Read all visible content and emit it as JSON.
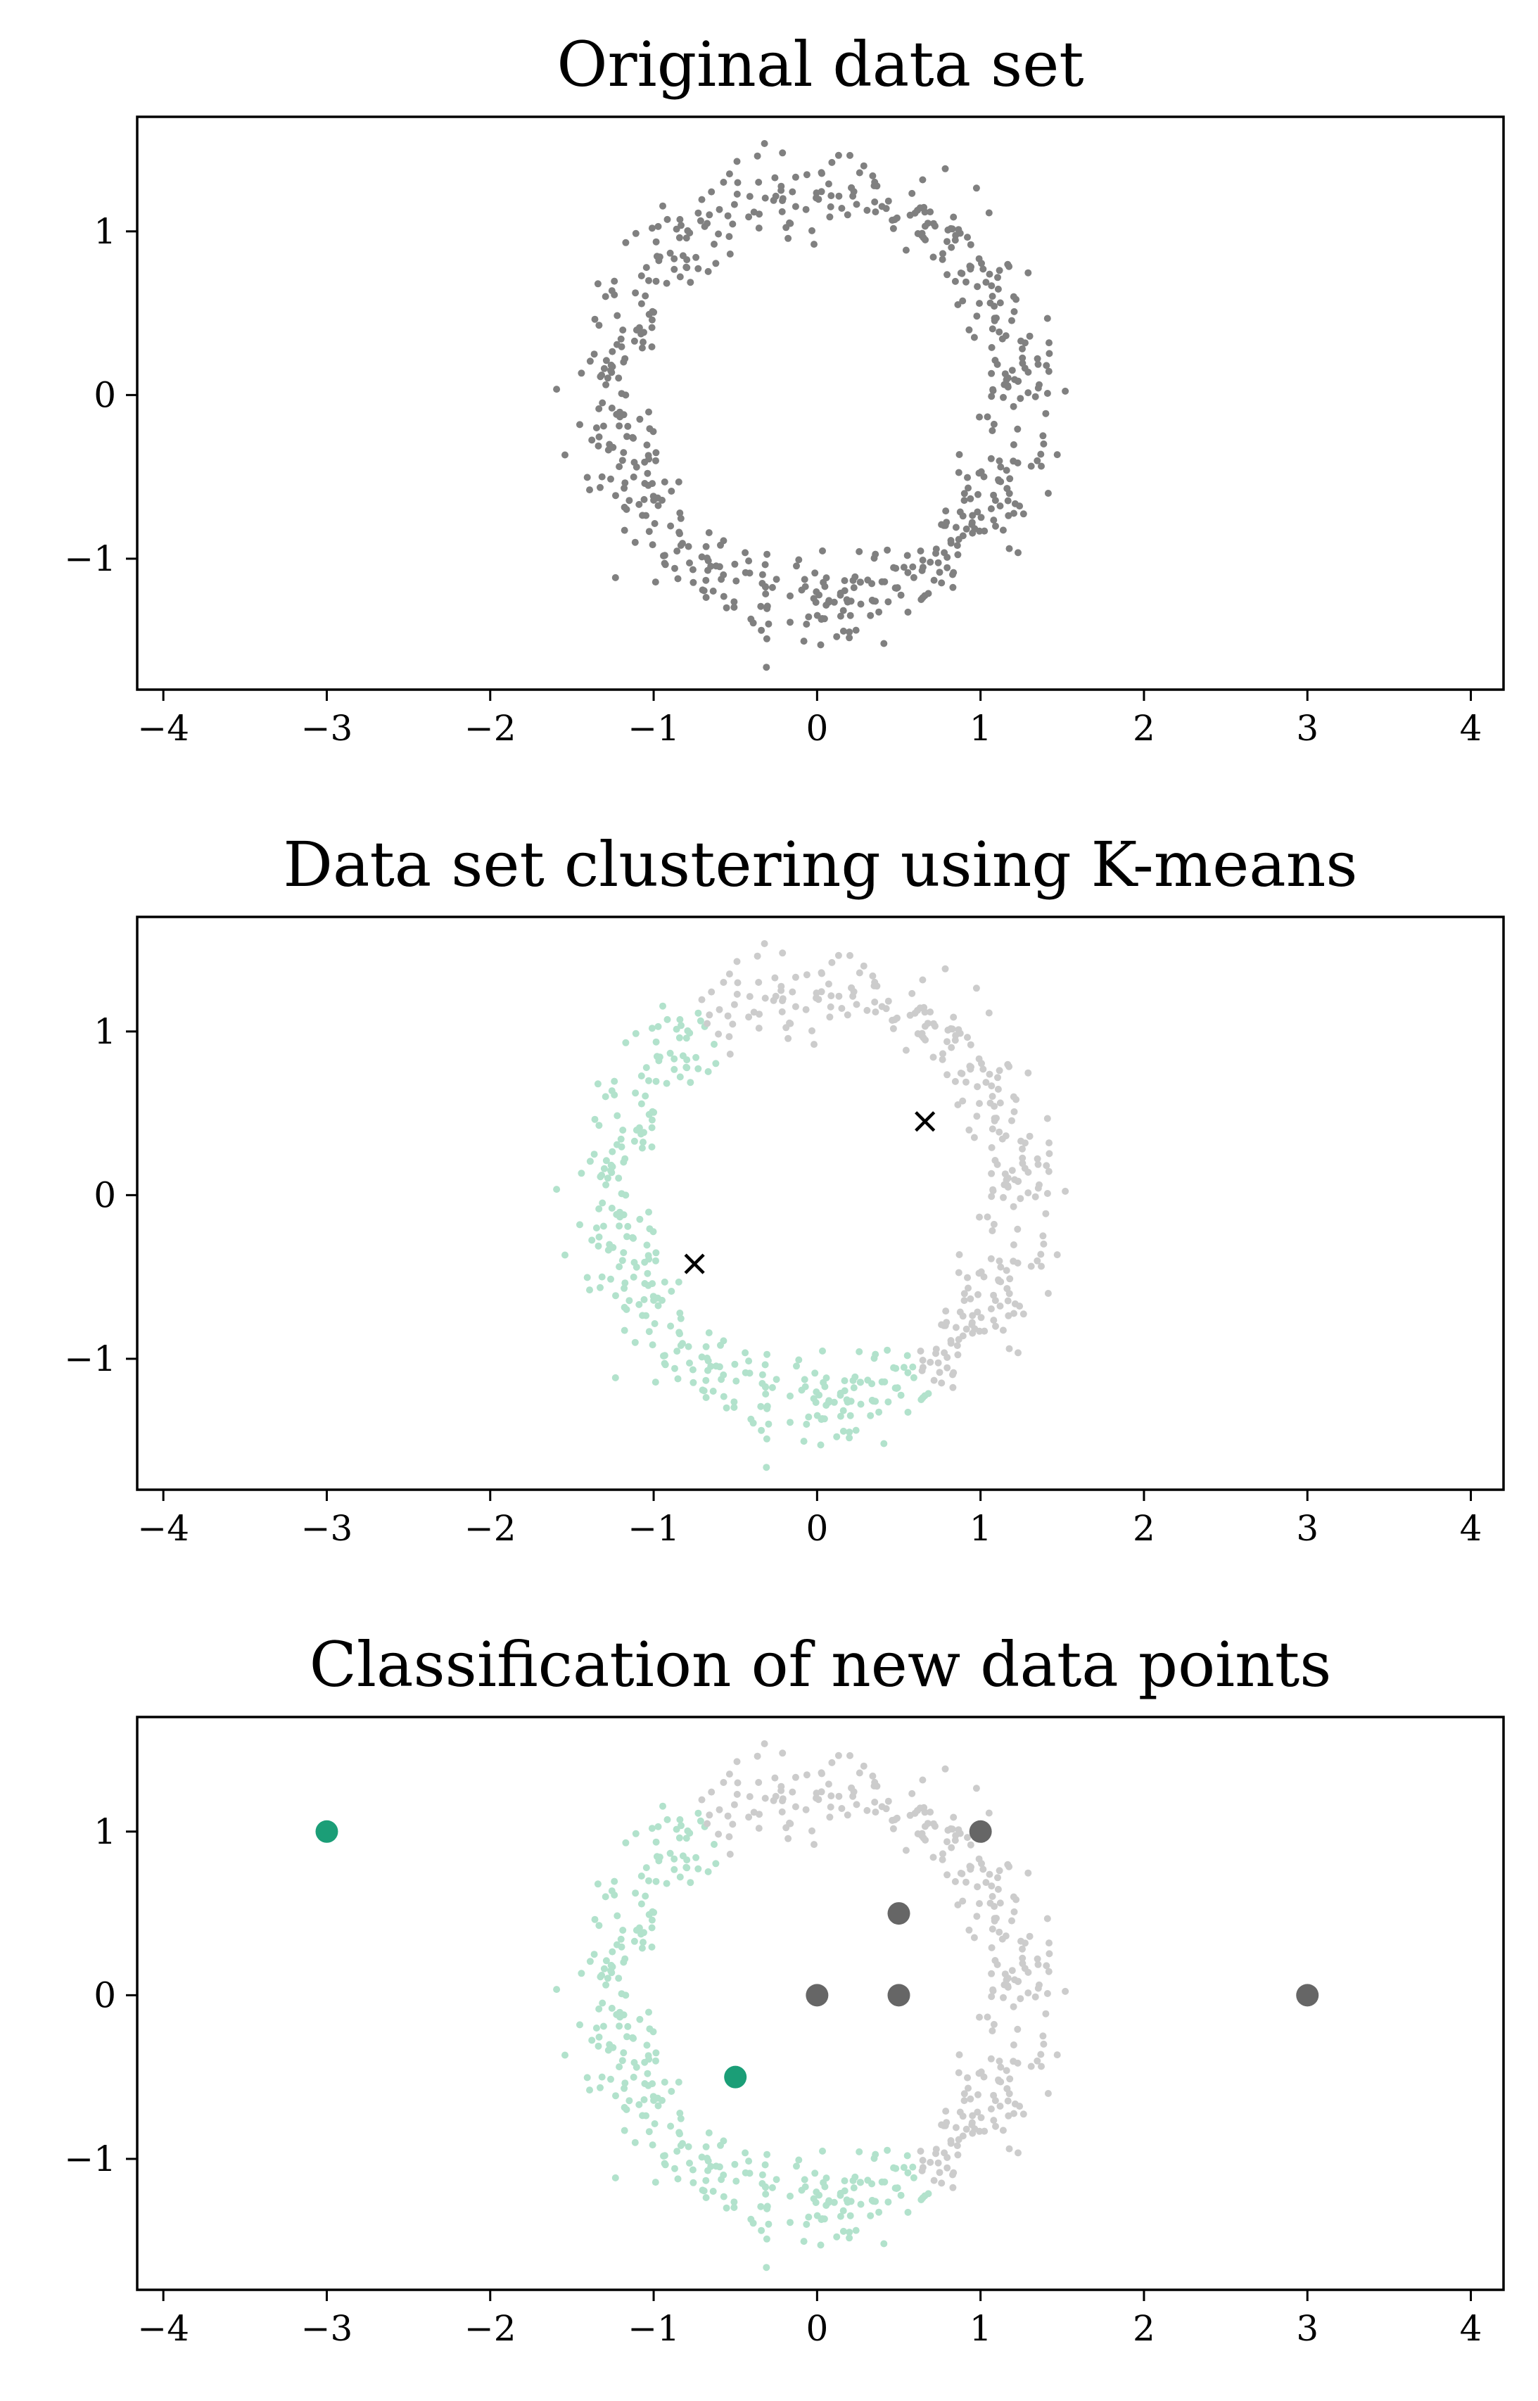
{
  "chart_data": [
    {
      "type": "scatter",
      "title": "Original data set",
      "xlim": [
        -4.16,
        4.2
      ],
      "ylim": [
        -1.8,
        1.7
      ],
      "xticks": [
        -4,
        -3,
        -2,
        -1,
        0,
        1,
        2,
        3,
        4
      ],
      "xtick_labels": [
        "−4",
        "−3",
        "−2",
        "−1",
        "0",
        "1",
        "2",
        "3",
        "4"
      ],
      "yticks": [
        -1,
        0,
        1
      ],
      "ytick_labels": [
        "−1",
        "0",
        "1"
      ],
      "grid": false,
      "legend": "none",
      "series": [
        {
          "marker": "dot",
          "color": "#808080",
          "values": "noisy ring of ~600 points around the unit circle, radius ≈ 1.25 ± 0.15 (x from about −1.55 to 1.55, y from about −1.65 to 1.55)"
        }
      ]
    },
    {
      "type": "scatter",
      "title": "Data set clustering using K-means",
      "xlim": [
        -4.16,
        4.2
      ],
      "ylim": [
        -1.8,
        1.7
      ],
      "xticks": [
        -4,
        -3,
        -2,
        -1,
        0,
        1,
        2,
        3,
        4
      ],
      "xtick_labels": [
        "−4",
        "−3",
        "−2",
        "−1",
        "0",
        "1",
        "2",
        "3",
        "4"
      ],
      "yticks": [
        -1,
        0,
        1
      ],
      "ytick_labels": [
        "−1",
        "0",
        "1"
      ],
      "grid": false,
      "legend": "none",
      "series": [
        {
          "marker": "dot",
          "color": "#b2e2cc",
          "values": "ring points on the lower-left side of the line through the two centroids"
        },
        {
          "marker": "dot",
          "color": "#cccccc",
          "values": "ring points on the upper-right side of the line through the two centroids"
        },
        {
          "marker": "x",
          "color": "#000000",
          "x": [
            0.66,
            -0.75
          ],
          "y": [
            0.45,
            -0.42
          ]
        }
      ]
    },
    {
      "type": "scatter",
      "title": "Classification of new data points",
      "xlim": [
        -4.16,
        4.2
      ],
      "ylim": [
        -1.8,
        1.7
      ],
      "xticks": [
        -4,
        -3,
        -2,
        -1,
        0,
        1,
        2,
        3,
        4
      ],
      "xtick_labels": [
        "−4",
        "−3",
        "−2",
        "−1",
        "0",
        "1",
        "2",
        "3",
        "4"
      ],
      "yticks": [
        -1,
        0,
        1
      ],
      "ytick_labels": [
        "−1",
        "0",
        "1"
      ],
      "grid": false,
      "legend": "none",
      "series": [
        {
          "marker": "dot",
          "color": "#b2e2cc",
          "values": "ring points, lower-left cluster"
        },
        {
          "marker": "dot",
          "color": "#cccccc",
          "values": "ring points, upper-right cluster"
        },
        {
          "marker": "circle",
          "color": "#1b9e77",
          "x": [
            -3,
            -0.5
          ],
          "y": [
            1,
            -0.5
          ]
        },
        {
          "marker": "circle",
          "color": "#666666",
          "x": [
            1,
            0.5,
            0,
            0.5,
            3
          ],
          "y": [
            1,
            0.5,
            0,
            0,
            0
          ]
        }
      ]
    }
  ]
}
